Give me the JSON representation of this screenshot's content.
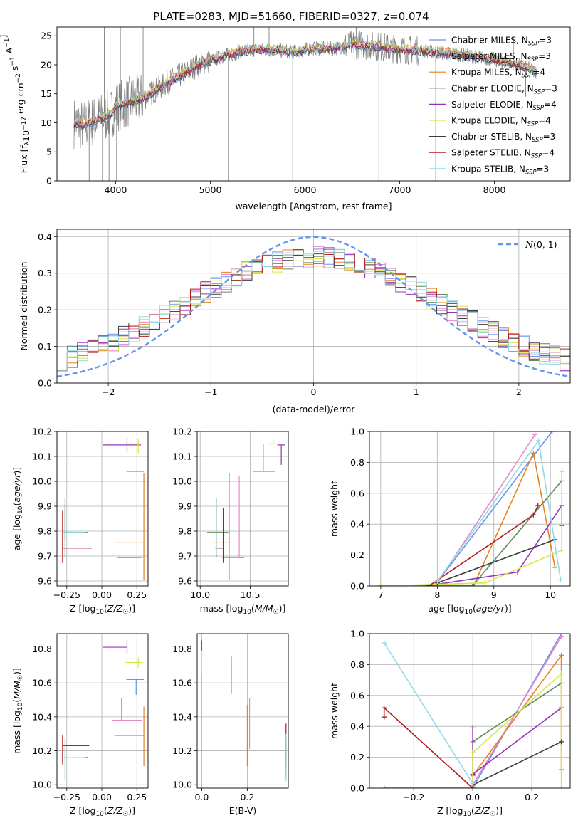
{
  "title": "PLATE=0283, MJD=51660, FIBERID=0327, z=0.074",
  "colors": {
    "chabrier_miles": "#6495ed",
    "salpeter_miles": "#e887c8",
    "kroupa_miles": "#e8811e",
    "chabrier_elodie": "#5f8a5a",
    "salpeter_elodie": "#9b30b8",
    "kroupa_elodie": "#d4e847",
    "chabrier_stelib": "#3d3d3d",
    "salpeter_stelib": "#b01c1c",
    "kroupa_stelib": "#8fdbe6",
    "data": "#808080"
  },
  "legend_models": [
    {
      "label": "Chabrier MILES, N",
      "sub": "SSP",
      "suffix": "=3"
    },
    {
      "label": "Salpeter MILES, N",
      "sub": "SSP",
      "suffix": "=3"
    },
    {
      "label": "Kroupa MILES, N",
      "sub": "SSP",
      "suffix": "=4"
    },
    {
      "label": "Chabrier ELODIE, N",
      "sub": "SSP",
      "suffix": "=3"
    },
    {
      "label": "Salpeter ELODIE, N",
      "sub": "SSP",
      "suffix": "=4"
    },
    {
      "label": "Kroupa ELODIE, N",
      "sub": "SSP",
      "suffix": "=4"
    },
    {
      "label": "Chabrier STELIB, N",
      "sub": "SSP",
      "suffix": "=3"
    },
    {
      "label": "Salpeter STELIB, N",
      "sub": "SSP",
      "suffix": "=4"
    },
    {
      "label": "Kroupa STELIB, N",
      "sub": "SSP",
      "suffix": "=3"
    }
  ],
  "chart_data": [
    {
      "id": "spectrum",
      "type": "line",
      "xlabel": "wavelength [Angstrom, rest frame]",
      "ylabel": "Flux [fλ10⁻¹⁷ erg cm⁻² s⁻¹ A⁻¹]",
      "xlim": [
        3380,
        8800
      ],
      "ylim": [
        0,
        26.5
      ],
      "xticks": [
        4000,
        5000,
        6000,
        7000,
        8000
      ],
      "yticks": [
        0,
        5,
        10,
        15,
        20,
        25
      ],
      "model_continuum": {
        "x": [
          3560,
          3650,
          3750,
          3850,
          3950,
          4000,
          4100,
          4300,
          4500,
          4700,
          4900,
          5100,
          5300,
          5500,
          5700,
          5900,
          6100,
          6300,
          6500,
          6700,
          6900,
          7100,
          7300,
          7500,
          7700,
          7900,
          8100,
          8300,
          8450
        ],
        "y": [
          10,
          9.6,
          10.1,
          10.8,
          11.5,
          12.8,
          13.4,
          14.3,
          16.5,
          18.3,
          20.2,
          21.3,
          22.2,
          22.7,
          22.5,
          22.2,
          22.9,
          22.8,
          23.5,
          23.4,
          22.8,
          22.6,
          22.3,
          22.0,
          21.6,
          21.2,
          20.5,
          19.7,
          18.8
        ]
      },
      "spikes": [
        {
          "x": 3720,
          "y": 0
        },
        {
          "x": 3860,
          "y": 0
        },
        {
          "x": 3930,
          "y": 0
        },
        {
          "x": 4010,
          "y": 0
        },
        {
          "x": 5190,
          "y": 0
        },
        {
          "x": 5870,
          "y": 0
        },
        {
          "x": 6780,
          "y": 0
        },
        {
          "x": 7380,
          "y": 0
        },
        {
          "x": 3880,
          "y": 26.5
        },
        {
          "x": 4050,
          "y": 26.5
        },
        {
          "x": 4290,
          "y": 26.5
        },
        {
          "x": 5460,
          "y": 26.5
        },
        {
          "x": 5620,
          "y": 26.5
        },
        {
          "x": 6540,
          "y": 26.5
        },
        {
          "x": 7540,
          "y": 26.5
        },
        {
          "x": 8200,
          "y": 24.5
        },
        {
          "x": 8330,
          "y": 14.5
        }
      ]
    },
    {
      "id": "residuals",
      "type": "line",
      "xlabel": "(data-model)/error",
      "ylabel": "Normed distribution",
      "xlim": [
        -2.5,
        2.5
      ],
      "ylim": [
        0,
        0.42
      ],
      "xticks": [
        -2,
        -1,
        0,
        1,
        2
      ],
      "yticks": [
        0.0,
        0.1,
        0.2,
        0.3,
        0.4
      ],
      "gaussian_label": "N(0, 1)",
      "gaussian": {
        "mu": 0,
        "sigma": 1
      }
    },
    {
      "id": "age_vs_Z",
      "type": "scatter",
      "xlabel": "Z [log10(Z/Z☉)]",
      "ylabel": "age [log10(age/yr)]",
      "xlim": [
        -0.32,
        0.33
      ],
      "ylim": [
        9.58,
        10.2
      ],
      "xticks": [
        -0.25,
        0.0,
        0.25
      ],
      "yticks": [
        9.6,
        9.7,
        9.8,
        9.9,
        10.0,
        10.1,
        10.2
      ],
      "points": [
        {
          "model": "chabrier_miles",
          "x": 0.245,
          "xerr": [
            0.07,
            0.055
          ],
          "y": 10.04,
          "yerr": [
            0.0,
            0.0
          ]
        },
        {
          "model": "salpeter_miles",
          "x": 0.14,
          "xerr": [
            0.03,
            0.15
          ],
          "y": 9.693,
          "yerr": [
            0.0,
            0.0
          ]
        },
        {
          "model": "kroupa_miles",
          "x": 0.3,
          "xerr": [
            0.21,
            0.0
          ],
          "y": 9.753,
          "yerr": [
            0.15,
            0.28
          ]
        },
        {
          "model": "chabrier_elodie",
          "x": -0.262,
          "xerr": [
            0.01,
            0.16
          ],
          "y": 9.795,
          "yerr": [
            0.03,
            0.14
          ]
        },
        {
          "model": "salpeter_elodie",
          "x": 0.18,
          "xerr": [
            0.17,
            0.1
          ],
          "y": 10.146,
          "yerr": [
            0.03,
            0.03
          ]
        },
        {
          "model": "kroupa_elodie",
          "x": 0.26,
          "xerr": [
            0.09,
            0.03
          ],
          "y": 10.15,
          "yerr": [
            0.04,
            0.02
          ]
        },
        {
          "model": "chabrier_stelib",
          "x": -0.262,
          "xerr": [
            0.0,
            0.08
          ],
          "y": 9.795,
          "yerr": [
            0.1,
            0.11
          ]
        },
        {
          "model": "salpeter_stelib",
          "x": -0.28,
          "xerr": [
            0.0,
            0.21
          ],
          "y": 9.732,
          "yerr": [
            0.06,
            0.15
          ]
        },
        {
          "model": "kroupa_stelib",
          "x": -0.262,
          "xerr": [
            0.01,
            0.14
          ],
          "y": 9.795,
          "yerr": [
            0.1,
            0.11
          ]
        }
      ]
    },
    {
      "id": "age_vs_mass",
      "type": "scatter",
      "xlabel": "mass [log10(M/M☉)]",
      "xlim": [
        9.97,
        10.88
      ],
      "ylim": [
        9.58,
        10.2
      ],
      "xticks": [
        10.0,
        10.5
      ],
      "yticks": [
        9.6,
        9.7,
        9.8,
        9.9,
        10.0,
        10.1,
        10.2
      ],
      "points": [
        {
          "model": "chabrier_miles",
          "x": 10.63,
          "xerr": [
            0.1,
            0.12
          ],
          "y": 10.04,
          "yerr": [
            0.0,
            0.11
          ]
        },
        {
          "model": "salpeter_miles",
          "x": 10.39,
          "xerr": [
            0.17,
            0.05
          ],
          "y": 9.693,
          "yerr": [
            0.0,
            0.33
          ]
        },
        {
          "model": "kroupa_miles",
          "x": 10.29,
          "xerr": [
            0.17,
            0.0
          ],
          "y": 9.753,
          "yerr": [
            0.15,
            0.28
          ]
        },
        {
          "model": "chabrier_elodie",
          "x": 10.16,
          "xerr": [
            0.09,
            0.12
          ],
          "y": 9.795,
          "yerr": [
            0.0,
            0.14
          ]
        },
        {
          "model": "salpeter_elodie",
          "x": 10.81,
          "xerr": [
            0.04,
            0.04
          ],
          "y": 10.146,
          "yerr": [
            0.08,
            0.0
          ]
        },
        {
          "model": "kroupa_elodie",
          "x": 10.73,
          "xerr": [
            0.05,
            0.07
          ],
          "y": 10.15,
          "yerr": [
            0.0,
            0.02
          ]
        },
        {
          "model": "chabrier_stelib",
          "x": 10.16,
          "xerr": [
            0.0,
            0.0
          ],
          "y": 9.795,
          "yerr": [
            0.1,
            0.11
          ]
        },
        {
          "model": "salpeter_stelib",
          "x": 10.23,
          "xerr": [
            0.08,
            0.0
          ],
          "y": 9.732,
          "yerr": [
            0.06,
            0.16
          ]
        },
        {
          "model": "kroupa_stelib",
          "x": 10.16,
          "xerr": [
            0.0,
            0.0
          ],
          "y": 9.795,
          "yerr": [
            0.09,
            0.11
          ]
        }
      ]
    },
    {
      "id": "weight_vs_age",
      "type": "line",
      "xlabel": "age [log10(age/yr)]",
      "ylabel": "mass weight",
      "xlim": [
        6.8,
        10.35
      ],
      "ylim": [
        0,
        1
      ],
      "xticks": [
        7,
        8,
        9,
        10
      ],
      "yticks": [
        0.0,
        0.2,
        0.4,
        0.6,
        0.8,
        1.0
      ],
      "series": [
        {
          "model": "chabrier_miles",
          "x": [
            7.95,
            10.03
          ],
          "y": [
            0.0,
            1.0
          ]
        },
        {
          "model": "salpeter_miles",
          "x": [
            8.0,
            9.73
          ],
          "y": [
            0.02,
            0.98
          ]
        },
        {
          "model": "kroupa_miles",
          "x": [
            7.0,
            8.64,
            9.7,
            10.08
          ],
          "y": [
            0.0,
            0.0,
            0.86,
            0.12
          ]
        },
        {
          "model": "chabrier_elodie",
          "x": [
            7.0,
            8.62,
            10.2
          ],
          "y": [
            0.0,
            0.0,
            0.68
          ]
        },
        {
          "model": "salpeter_elodie",
          "x": [
            7.8,
            9.42,
            10.2,
            10.2
          ],
          "y": [
            0.0,
            0.09,
            0.52,
            0.39
          ]
        },
        {
          "model": "kroupa_elodie",
          "x": [
            7.0,
            8.84,
            10.2,
            10.2
          ],
          "y": [
            0.0,
            0.02,
            0.23,
            0.74
          ]
        },
        {
          "model": "chabrier_stelib",
          "x": [
            8.0,
            10.08
          ],
          "y": [
            0.02,
            0.3
          ]
        },
        {
          "model": "salpeter_stelib",
          "x": [
            7.85,
            9.7,
            9.78
          ],
          "y": [
            0.0,
            0.46,
            0.52
          ]
        },
        {
          "model": "kroupa_stelib",
          "x": [
            8.0,
            9.79,
            10.18
          ],
          "y": [
            0.03,
            0.94,
            0.04
          ]
        }
      ]
    },
    {
      "id": "mass_vs_Z",
      "type": "scatter",
      "xlabel": "Z [log10(Z/Z☉)]",
      "ylabel": "mass [log10(M/M☉)]",
      "xlim": [
        -0.32,
        0.33
      ],
      "ylim": [
        9.98,
        10.89
      ],
      "xticks": [
        -0.25,
        0.0,
        0.25
      ],
      "yticks": [
        10.0,
        10.2,
        10.4,
        10.6,
        10.8
      ],
      "points": [
        {
          "model": "chabrier_miles",
          "x": 0.245,
          "xerr": [
            0.07,
            0.055
          ],
          "y": 10.62,
          "yerr": [
            0.09,
            0.0
          ]
        },
        {
          "model": "salpeter_miles",
          "x": 0.14,
          "xerr": [
            0.07,
            0.15
          ],
          "y": 10.38,
          "yerr": [
            0.0,
            0.13
          ]
        },
        {
          "model": "kroupa_miles",
          "x": 0.3,
          "xerr": [
            0.21,
            0.0
          ],
          "y": 10.29,
          "yerr": [
            0.18,
            0.17
          ]
        },
        {
          "model": "chabrier_elodie",
          "x": -0.262,
          "xerr": [
            0.0,
            0.0
          ],
          "y": 10.16,
          "yerr": [
            0.13,
            0.12
          ]
        },
        {
          "model": "salpeter_elodie",
          "x": 0.18,
          "xerr": [
            0.17,
            0.0
          ],
          "y": 10.81,
          "yerr": [
            0.04,
            0.04
          ]
        },
        {
          "model": "kroupa_elodie",
          "x": 0.26,
          "xerr": [
            0.09,
            0.03
          ],
          "y": 10.72,
          "yerr": [
            0.03,
            0.03
          ]
        },
        {
          "model": "chabrier_stelib",
          "x": -0.262,
          "xerr": [
            0.0,
            0.16
          ],
          "y": 10.16,
          "yerr": [
            0.0,
            0.0
          ]
        },
        {
          "model": "salpeter_stelib",
          "x": -0.28,
          "xerr": [
            0.0,
            0.19
          ],
          "y": 10.23,
          "yerr": [
            0.11,
            0.06
          ]
        },
        {
          "model": "kroupa_stelib",
          "x": -0.262,
          "xerr": [
            0.01,
            0.14
          ],
          "y": 10.16,
          "yerr": [
            0.12,
            0.08
          ]
        }
      ]
    },
    {
      "id": "mass_vs_ebv",
      "type": "scatter",
      "xlabel": "E(B-V)",
      "xlim": [
        -0.02,
        0.38
      ],
      "ylim": [
        9.98,
        10.89
      ],
      "xticks": [
        0.0,
        0.2
      ],
      "yticks": [
        10.0,
        10.2,
        10.4,
        10.6,
        10.8
      ],
      "points": [
        {
          "model": "chabrier_miles",
          "x": 0.13,
          "y": 10.645,
          "yerr": [
            0.11,
            0.11
          ]
        },
        {
          "model": "salpeter_miles",
          "x": 0.21,
          "y": 10.36,
          "yerr": [
            0.15,
            0.15
          ]
        },
        {
          "model": "kroupa_miles",
          "x": 0.2,
          "y": 10.29,
          "yerr": [
            0.18,
            0.18
          ]
        },
        {
          "model": "chabrier_elodie",
          "x": 0.37,
          "y": 10.16,
          "yerr": [
            0.12,
            0.1
          ]
        },
        {
          "model": "salpeter_elodie",
          "x": 0.0,
          "y": 10.8,
          "yerr": [
            0.05,
            0.05
          ]
        },
        {
          "model": "kroupa_elodie",
          "x": 0.0,
          "y": 10.72,
          "yerr": [
            0.07,
            0.07
          ]
        },
        {
          "model": "chabrier_stelib",
          "x": 0.37,
          "y": 10.16,
          "yerr": [
            0.0,
            0.0
          ]
        },
        {
          "model": "salpeter_stelib",
          "x": 0.37,
          "y": 10.23,
          "yerr": [
            0.13,
            0.13
          ]
        },
        {
          "model": "kroupa_stelib",
          "x": 0.37,
          "y": 10.16,
          "yerr": [
            0.14,
            0.14
          ]
        }
      ]
    },
    {
      "id": "weight_vs_Z",
      "type": "line",
      "xlabel": "Z [log10(Z/Z☉)]",
      "ylabel": "mass weight",
      "xlim": [
        -0.35,
        0.33
      ],
      "ylim": [
        0,
        1
      ],
      "xticks": [
        -0.2,
        0.0,
        0.2
      ],
      "yticks": [
        0.0,
        0.2,
        0.4,
        0.6,
        0.8,
        1.0
      ],
      "series": [
        {
          "model": "chabrier_miles",
          "x": [
            -0.3,
            0.0,
            0.3
          ],
          "y": [
            0.0,
            0.0,
            1.0
          ]
        },
        {
          "model": "salpeter_miles",
          "x": [
            0.0,
            0.3
          ],
          "y": [
            0.02,
            0.98
          ]
        },
        {
          "model": "kroupa_miles",
          "x": [
            0.0,
            0.0,
            0.3,
            0.3
          ],
          "y": [
            0.0,
            0.08,
            0.86,
            0.12
          ]
        },
        {
          "model": "chabrier_elodie",
          "x": [
            0.0,
            0.3
          ],
          "y": [
            0.3,
            0.68
          ]
        },
        {
          "model": "salpeter_elodie",
          "x": [
            0.0,
            0.0,
            0.3
          ],
          "y": [
            0.39,
            0.09,
            0.52
          ]
        },
        {
          "model": "kroupa_elodie",
          "x": [
            0.0,
            0.0,
            0.3,
            0.3
          ],
          "y": [
            0.02,
            0.23,
            0.74,
            0.0
          ]
        },
        {
          "model": "chabrier_stelib",
          "x": [
            0.0,
            0.3
          ],
          "y": [
            0.02,
            0.3
          ]
        },
        {
          "model": "salpeter_stelib",
          "x": [
            -0.3,
            -0.3,
            0.0
          ],
          "y": [
            0.46,
            0.52,
            0.0
          ]
        },
        {
          "model": "kroupa_stelib",
          "x": [
            -0.3,
            0.0,
            0.0
          ],
          "y": [
            0.94,
            0.03,
            0.04
          ]
        }
      ]
    }
  ]
}
